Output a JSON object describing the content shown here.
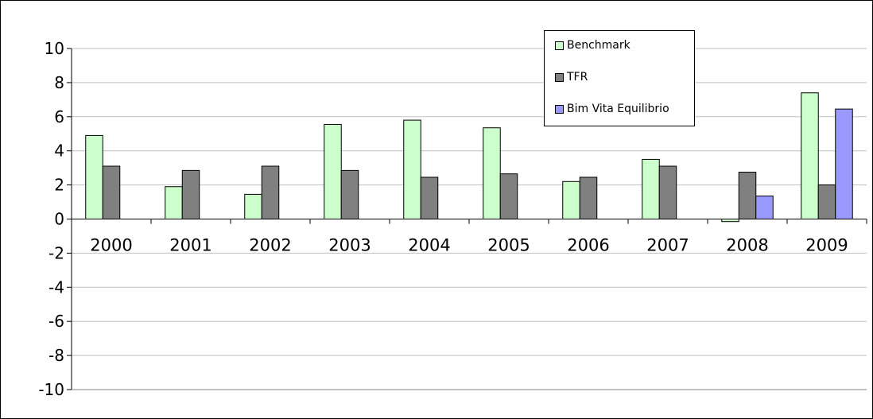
{
  "chart_data": {
    "type": "bar",
    "title": "",
    "xlabel": "",
    "ylabel": "",
    "ylim": [
      -10,
      10
    ],
    "yticks": [
      10,
      8,
      6,
      4,
      2,
      0,
      -2,
      -4,
      -6,
      -8,
      -10
    ],
    "categories": [
      "2000",
      "2001",
      "2002",
      "2003",
      "2004",
      "2005",
      "2006",
      "2007",
      "2008",
      "2009"
    ],
    "series": [
      {
        "name": "Benchmark",
        "color": "#ccffcc",
        "values": [
          4.9,
          1.9,
          1.45,
          5.55,
          5.8,
          5.35,
          2.2,
          3.5,
          -0.15,
          7.4
        ]
      },
      {
        "name": "TFR",
        "color": "#808080",
        "values": [
          3.1,
          2.85,
          3.1,
          2.85,
          2.45,
          2.65,
          2.45,
          3.1,
          2.75,
          2.0
        ]
      },
      {
        "name": "Bim Vita Equilibrio",
        "color": "#9999ff",
        "values": [
          null,
          null,
          null,
          null,
          null,
          null,
          null,
          null,
          1.35,
          6.45
        ]
      }
    ],
    "grid": true,
    "legend_position": "top-right"
  }
}
